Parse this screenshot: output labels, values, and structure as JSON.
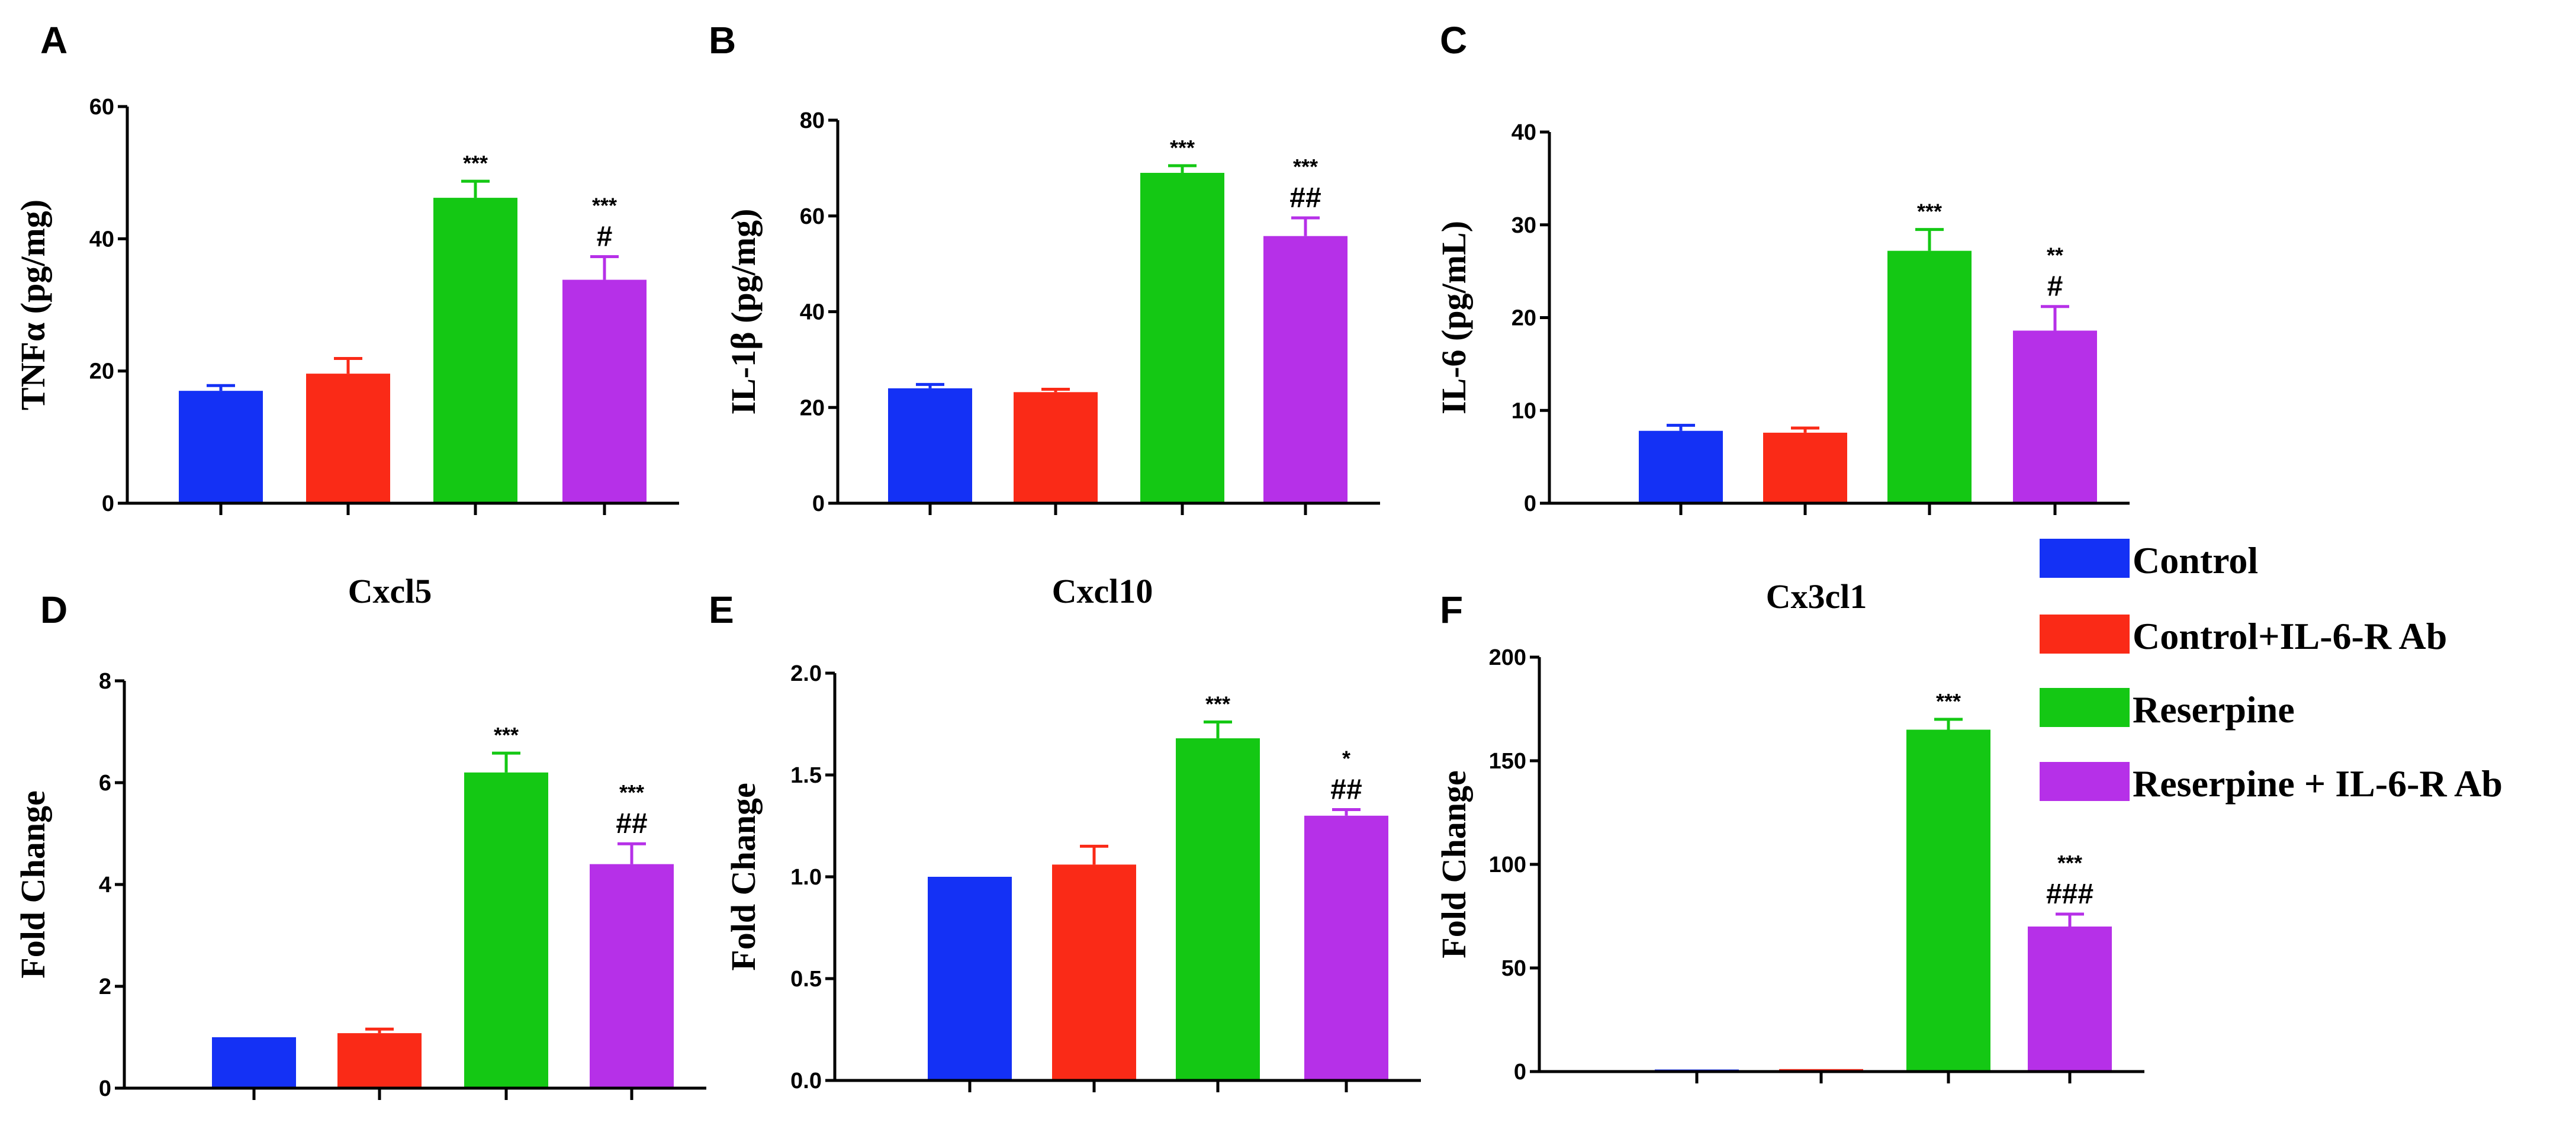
{
  "colors": {
    "Control": "#1431f5",
    "Control+IL-6-R Ab": "#fa2a17",
    "Reserpine": "#14c814",
    "Reserpine + IL-6-R Ab": "#b630e8"
  },
  "legend": {
    "items": [
      {
        "label": "Control",
        "color": "#1431f5"
      },
      {
        "label": "Control+IL-6-R Ab",
        "color": "#fa2a17"
      },
      {
        "label": "Reserpine",
        "color": "#14c814"
      },
      {
        "label": "Reserpine + IL-6-R Ab",
        "color": "#b630e8"
      }
    ]
  },
  "chart_data": [
    {
      "panel": "A",
      "type": "bar",
      "title": "",
      "ylabel": "TNFα (pg/mg)",
      "xlabel": "",
      "ylim": [
        0,
        60
      ],
      "yticks": [
        0,
        20,
        40,
        60
      ],
      "tick_labels": [
        "0",
        "20",
        "40",
        "60"
      ],
      "categories": [
        "Control",
        "Control+IL-6-R Ab",
        "Reserpine",
        "Reserpine + IL-6-R Ab"
      ],
      "values": [
        17,
        19.6,
        46.2,
        33.8
      ],
      "errors": [
        0.8,
        2.3,
        2.5,
        3.5
      ],
      "sig_star": [
        "",
        "",
        "***",
        "***"
      ],
      "sig_hash": [
        "",
        "",
        "",
        "#"
      ]
    },
    {
      "panel": "B",
      "type": "bar",
      "title": "",
      "ylabel": "IL-1β (pg/mg)",
      "xlabel": "",
      "ylim": [
        0,
        80
      ],
      "yticks": [
        0,
        20,
        40,
        60,
        80
      ],
      "tick_labels": [
        "0",
        "20",
        "40",
        "60",
        "80"
      ],
      "categories": [
        "Control",
        "Control+IL-6-R Ab",
        "Reserpine",
        "Reserpine + IL-6-R Ab"
      ],
      "values": [
        24,
        23.2,
        69,
        55.8
      ],
      "errors": [
        0.8,
        0.6,
        1.5,
        3.8
      ],
      "sig_star": [
        "",
        "",
        "***",
        "***"
      ],
      "sig_hash": [
        "",
        "",
        "",
        "##"
      ]
    },
    {
      "panel": "C",
      "type": "bar",
      "title": "",
      "ylabel": "IL-6 (pg/mL)",
      "xlabel": "",
      "ylim": [
        0,
        40
      ],
      "yticks": [
        0,
        10,
        20,
        30,
        40
      ],
      "tick_labels": [
        "0",
        "10",
        "20",
        "30",
        "40"
      ],
      "categories": [
        "Control",
        "Control+IL-6-R Ab",
        "Reserpine",
        "Reserpine + IL-6-R Ab"
      ],
      "values": [
        7.8,
        7.6,
        27.2,
        18.6
      ],
      "errors": [
        0.6,
        0.5,
        2.3,
        2.6
      ],
      "sig_star": [
        "",
        "",
        "***",
        "**"
      ],
      "sig_hash": [
        "",
        "",
        "",
        "#"
      ]
    },
    {
      "panel": "D",
      "type": "bar",
      "title": "Cxcl5",
      "ylabel": "Fold Change",
      "xlabel": "",
      "ylim": [
        0,
        8
      ],
      "yticks": [
        0,
        2,
        4,
        6,
        8
      ],
      "tick_labels": [
        "0",
        "2",
        "4",
        "6",
        "8"
      ],
      "categories": [
        "Control",
        "Control+IL-6-R Ab",
        "Reserpine",
        "Reserpine + IL-6-R Ab"
      ],
      "values": [
        1,
        1.08,
        6.2,
        4.4
      ],
      "errors": [
        0,
        0.08,
        0.38,
        0.4
      ],
      "sig_star": [
        "",
        "",
        "***",
        "***"
      ],
      "sig_hash": [
        "",
        "",
        "",
        "##"
      ]
    },
    {
      "panel": "E",
      "type": "bar",
      "title": "Cxcl10",
      "ylabel": "Fold Change",
      "xlabel": "",
      "ylim": [
        0,
        2
      ],
      "yticks": [
        0,
        0.5,
        1,
        1.5,
        2
      ],
      "tick_labels": [
        "0.0",
        "0.5",
        "1.0",
        "1.5",
        "2.0"
      ],
      "categories": [
        "Control",
        "Control+IL-6-R Ab",
        "Reserpine",
        "Reserpine + IL-6-R Ab"
      ],
      "values": [
        1,
        1.06,
        1.68,
        1.3
      ],
      "errors": [
        0,
        0.09,
        0.08,
        0.03
      ],
      "sig_star": [
        "",
        "",
        "***",
        "*"
      ],
      "sig_hash": [
        "",
        "",
        "",
        "##"
      ]
    },
    {
      "panel": "F",
      "type": "bar",
      "title": "Cx3cl1",
      "ylabel": "Fold Change",
      "xlabel": "",
      "ylim": [
        0,
        200
      ],
      "yticks": [
        0,
        50,
        100,
        150,
        200
      ],
      "tick_labels": [
        "0",
        "50",
        "100",
        "150",
        "200"
      ],
      "categories": [
        "Control",
        "Control+IL-6-R Ab",
        "Reserpine",
        "Reserpine + IL-6-R Ab"
      ],
      "values": [
        1,
        1.2,
        165,
        70
      ],
      "errors": [
        0,
        0,
        5,
        6
      ],
      "sig_star": [
        "",
        "",
        "***",
        "***"
      ],
      "sig_hash": [
        "",
        "",
        "",
        "###"
      ]
    }
  ]
}
